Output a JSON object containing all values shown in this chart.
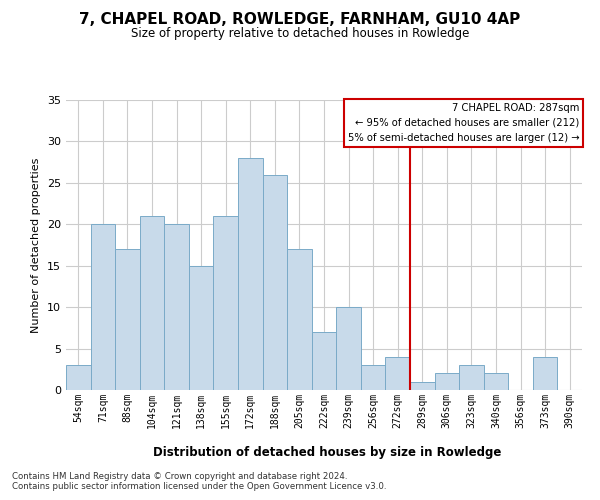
{
  "title": "7, CHAPEL ROAD, ROWLEDGE, FARNHAM, GU10 4AP",
  "subtitle": "Size of property relative to detached houses in Rowledge",
  "xlabel": "Distribution of detached houses by size in Rowledge",
  "ylabel": "Number of detached properties",
  "bins": [
    "54sqm",
    "71sqm",
    "88sqm",
    "104sqm",
    "121sqm",
    "138sqm",
    "155sqm",
    "172sqm",
    "188sqm",
    "205sqm",
    "222sqm",
    "239sqm",
    "256sqm",
    "272sqm",
    "289sqm",
    "306sqm",
    "323sqm",
    "340sqm",
    "356sqm",
    "373sqm",
    "390sqm"
  ],
  "values": [
    3,
    20,
    17,
    21,
    20,
    15,
    21,
    28,
    26,
    17,
    7,
    10,
    3,
    4,
    1,
    2,
    3,
    2,
    0,
    4,
    0
  ],
  "bar_color": "#c8daea",
  "bar_edge_color": "#7aaac8",
  "marker_idx": 14,
  "marker_label": "7 CHAPEL ROAD: 287sqm",
  "annotation_line1": "← 95% of detached houses are smaller (212)",
  "annotation_line2": "5% of semi-detached houses are larger (12) →",
  "vline_color": "#cc0000",
  "grid_color": "#cccccc",
  "background_color": "#ffffff",
  "footnote1": "Contains HM Land Registry data © Crown copyright and database right 2024.",
  "footnote2": "Contains public sector information licensed under the Open Government Licence v3.0.",
  "ylim": [
    0,
    35
  ],
  "yticks": [
    0,
    5,
    10,
    15,
    20,
    25,
    30,
    35
  ]
}
